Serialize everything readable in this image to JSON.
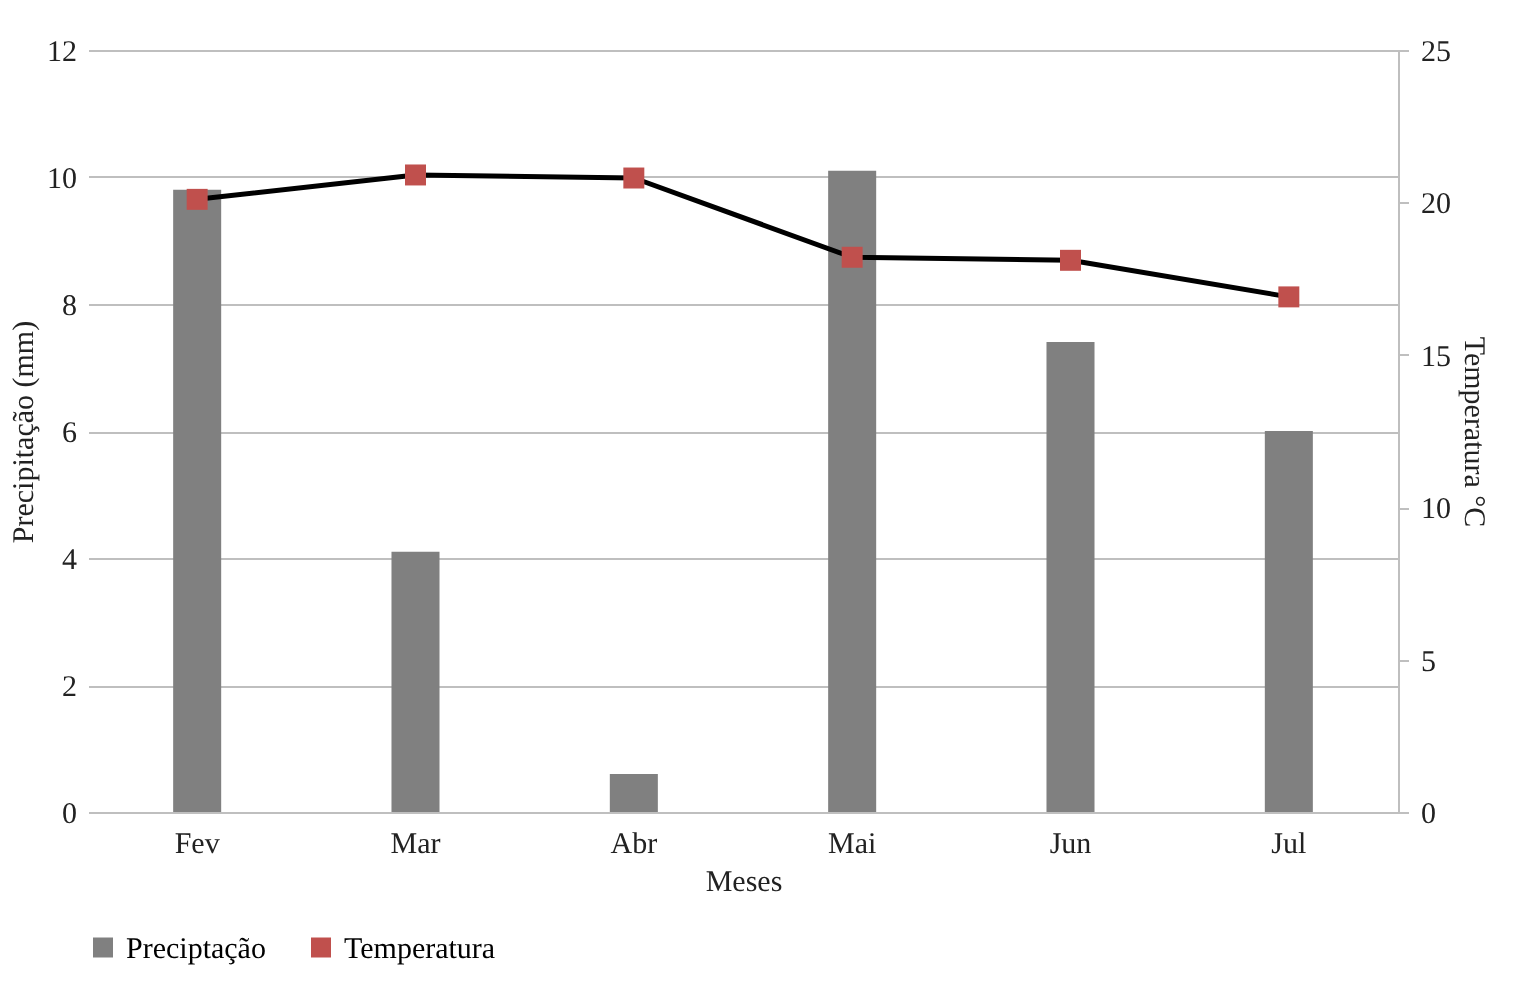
{
  "chart_data": {
    "type": "bar",
    "xlabel": "Meses",
    "ylabel": "Precipitação  (mm)",
    "y2label": "Temperatura °C",
    "categories": [
      "Fev",
      "Mar",
      "Abr",
      "Mai",
      "Jun",
      "Jul"
    ],
    "series": [
      {
        "name": "Preciptação",
        "type": "bar",
        "color": "#808080",
        "values": [
          9.8,
          4.1,
          0.6,
          10.1,
          7.4,
          6.0
        ]
      },
      {
        "name": "Temperatura",
        "type": "line",
        "axis": "y2",
        "color": "#c0504d",
        "marker": "square",
        "values": [
          20.1,
          20.9,
          20.8,
          18.2,
          18.1,
          16.9
        ]
      }
    ],
    "ylim": [
      0,
      12
    ],
    "yticks": [
      0,
      2,
      4,
      6,
      8,
      10,
      12
    ],
    "y2lim": [
      0,
      25
    ],
    "y2ticks": [
      0,
      5,
      10,
      15,
      20,
      25
    ],
    "grid": "y",
    "legend": "bottom"
  }
}
